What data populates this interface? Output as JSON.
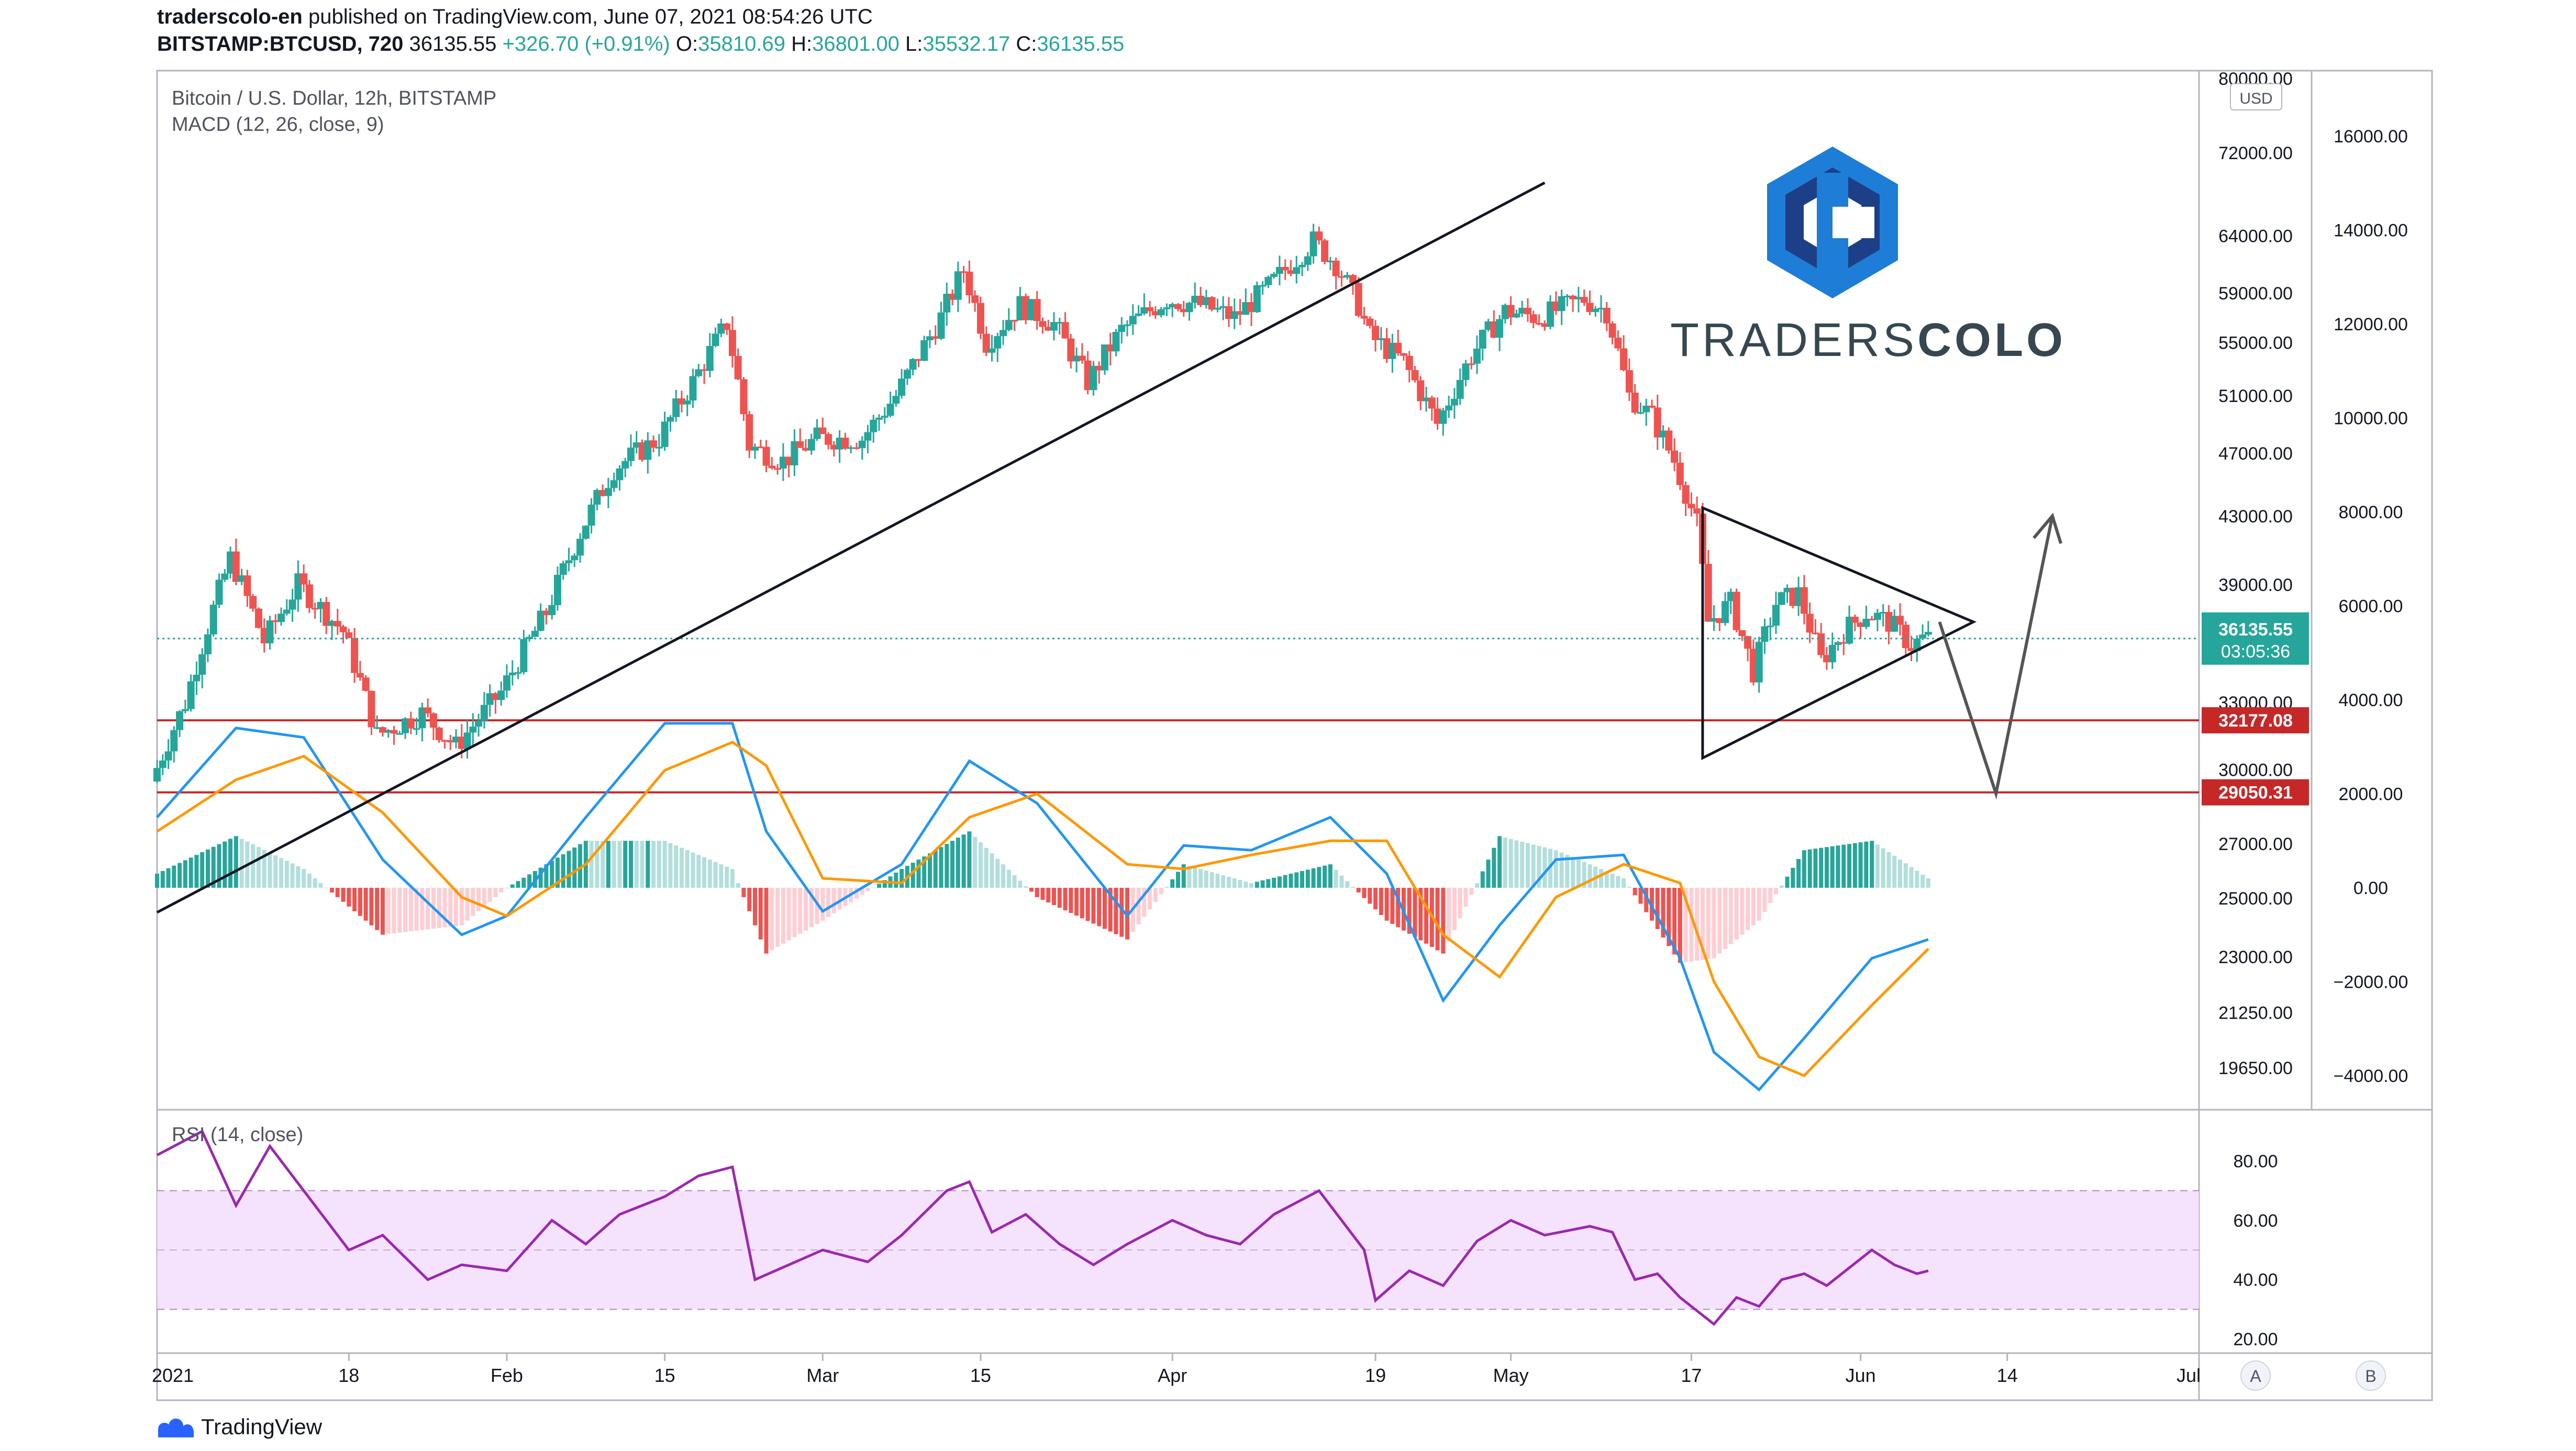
{
  "header": {
    "author": "traderscolo-en",
    "published_text": "published on TradingView.com, June 07, 2021 08:54:26 UTC",
    "symbol": "BITSTAMP:BTCUSD, 720",
    "last": "36135.55",
    "change": "+326.70 (+0.91%)",
    "o_label": "O:",
    "o": "35810.69",
    "h_label": "H:",
    "h": "36801.00",
    "l_label": "L:",
    "l": "35532.17",
    "c_label": "C:",
    "c": "36135.55"
  },
  "legend": {
    "title": "Bitcoin / U.S. Dollar, 12h, BITSTAMP",
    "macd": "MACD (12, 26, close, 9)",
    "rsi": "RSI (14, close)"
  },
  "brand": {
    "logo": "TRADERSCOLO",
    "logo_part1": "TRADERS",
    "logo_part2": "COLO"
  },
  "footer": {
    "brand": "TradingView"
  },
  "colors": {
    "up": "#26a69a",
    "down": "#ef5350",
    "macd": "#2196f3",
    "signal": "#ff9800",
    "rsi": "#9c27b0",
    "rsi_band": "#f2dcfc",
    "hline": "#c62828",
    "trendline": "#000000",
    "logo_blue": "#1e7dd6",
    "logo_dark": "#1d3f87",
    "logo_text": "#37474f"
  },
  "chart_data": {
    "type": "candlestick",
    "interval": "12h",
    "price_axis": {
      "scale": "log",
      "currency": "USD",
      "ticks": [
        "80000.00",
        "72000.00",
        "64000.00",
        "59000.00",
        "55000.00",
        "51000.00",
        "47000.00",
        "43000.00",
        "39000.00",
        "33000.00",
        "30000.00",
        "27000.00",
        "25000.00",
        "23000.00",
        "21250.00",
        "19650.00"
      ],
      "tick_values": [
        80000,
        72000,
        64000,
        59000,
        55000,
        51000,
        47000,
        43000,
        39000,
        33000,
        30000,
        27000,
        25000,
        23000,
        21250,
        19650
      ]
    },
    "macd_axis": {
      "ticks": [
        "16000.00",
        "14000.00",
        "12000.00",
        "10000.00",
        "8000.00",
        "6000.00",
        "4000.00",
        "2000.00",
        "0.00",
        "−2000.00",
        "−4000.00"
      ],
      "tick_values": [
        16000,
        14000,
        12000,
        10000,
        8000,
        6000,
        4000,
        2000,
        0,
        -2000,
        -4000
      ]
    },
    "rsi_axis": {
      "ticks": [
        "80.00",
        "60.00",
        "40.00",
        "20.00"
      ],
      "tick_values": [
        80,
        60,
        40,
        20
      ],
      "band": [
        30,
        70
      ]
    },
    "x_ticks": [
      "2021",
      "18",
      "Feb",
      "15",
      "Mar",
      "15",
      "Apr",
      "19",
      "May",
      "17",
      "Jun",
      "14",
      "Jul"
    ],
    "x_tick_dates": [
      "2021-01-01",
      "2021-01-18",
      "2021-02-01",
      "2021-02-15",
      "2021-03-01",
      "2021-03-15",
      "2021-04-01",
      "2021-04-19",
      "2021-05-01",
      "2021-05-17",
      "2021-06-01",
      "2021-06-14",
      "2021-07-01"
    ],
    "x_range": [
      "2021-01-01",
      "2021-07-01"
    ],
    "scale_buttons": [
      "A",
      "B"
    ],
    "last_price": {
      "value": "36135.55",
      "countdown": "03:05:36"
    },
    "horizontal_levels": [
      {
        "value": 32177.08,
        "label": "32177.08"
      },
      {
        "value": 29050.31,
        "label": "29050.31"
      }
    ],
    "path_points": [
      [
        "2021-01-01",
        29500
      ],
      [
        "2021-01-04",
        33000
      ],
      [
        "2021-01-08",
        40500
      ],
      [
        "2021-01-11",
        36000
      ],
      [
        "2021-01-14",
        39000
      ],
      [
        "2021-01-18",
        36500
      ],
      [
        "2021-01-21",
        31500
      ],
      [
        "2021-01-25",
        32500
      ],
      [
        "2021-01-28",
        31000
      ],
      [
        "2021-02-01",
        33500
      ],
      [
        "2021-02-05",
        37500
      ],
      [
        "2021-02-08",
        42000
      ],
      [
        "2021-02-11",
        46000
      ],
      [
        "2021-02-15",
        48000
      ],
      [
        "2021-02-18",
        52000
      ],
      [
        "2021-02-21",
        56500
      ],
      [
        "2021-02-23",
        47500
      ],
      [
        "2021-02-26",
        46500
      ],
      [
        "2021-03-01",
        48000
      ],
      [
        "2021-03-05",
        48000
      ],
      [
        "2021-03-08",
        51000
      ],
      [
        "2021-03-12",
        57000
      ],
      [
        "2021-03-14",
        61000
      ],
      [
        "2021-03-16",
        55000
      ],
      [
        "2021-03-19",
        58000
      ],
      [
        "2021-03-22",
        56500
      ],
      [
        "2021-03-25",
        52000
      ],
      [
        "2021-03-28",
        56000
      ],
      [
        "2021-04-01",
        58500
      ],
      [
        "2021-04-04",
        58000
      ],
      [
        "2021-04-07",
        57000
      ],
      [
        "2021-04-10",
        59500
      ],
      [
        "2021-04-14",
        63500
      ],
      [
        "2021-04-16",
        61500
      ],
      [
        "2021-04-18",
        58000
      ],
      [
        "2021-04-19",
        55500
      ],
      [
        "2021-04-22",
        53500
      ],
      [
        "2021-04-25",
        49000
      ],
      [
        "2021-04-28",
        54000
      ],
      [
        "2021-05-01",
        57500
      ],
      [
        "2021-05-04",
        57000
      ],
      [
        "2021-05-08",
        58500
      ],
      [
        "2021-05-10",
        57500
      ],
      [
        "2021-05-12",
        51000
      ],
      [
        "2021-05-14",
        49500
      ],
      [
        "2021-05-16",
        46500
      ],
      [
        "2021-05-18",
        42500
      ],
      [
        "2021-05-19",
        37000
      ],
      [
        "2021-05-21",
        38000
      ],
      [
        "2021-05-23",
        34500
      ],
      [
        "2021-05-25",
        38000
      ],
      [
        "2021-05-27",
        38500
      ],
      [
        "2021-05-29",
        35000
      ],
      [
        "2021-05-31",
        36500
      ],
      [
        "2021-06-02",
        37500
      ],
      [
        "2021-06-04",
        37000
      ],
      [
        "2021-06-06",
        35800
      ],
      [
        "2021-06-07",
        36135
      ]
    ],
    "macd_points": [
      [
        "2021-01-01",
        1500
      ],
      [
        "2021-01-08",
        3400
      ],
      [
        "2021-01-14",
        3200
      ],
      [
        "2021-01-21",
        600
      ],
      [
        "2021-01-28",
        -1000
      ],
      [
        "2021-02-01",
        -600
      ],
      [
        "2021-02-08",
        1500
      ],
      [
        "2021-02-15",
        3500
      ],
      [
        "2021-02-21",
        3500
      ],
      [
        "2021-02-24",
        1200
      ],
      [
        "2021-03-01",
        -500
      ],
      [
        "2021-03-08",
        500
      ],
      [
        "2021-03-14",
        2700
      ],
      [
        "2021-03-20",
        1800
      ],
      [
        "2021-03-28",
        -600
      ],
      [
        "2021-04-02",
        900
      ],
      [
        "2021-04-08",
        800
      ],
      [
        "2021-04-15",
        1500
      ],
      [
        "2021-04-20",
        300
      ],
      [
        "2021-04-25",
        -2400
      ],
      [
        "2021-04-30",
        -800
      ],
      [
        "2021-05-05",
        600
      ],
      [
        "2021-05-11",
        700
      ],
      [
        "2021-05-16",
        -1500
      ],
      [
        "2021-05-19",
        -3500
      ],
      [
        "2021-05-23",
        -4300
      ],
      [
        "2021-05-27",
        -3200
      ],
      [
        "2021-06-02",
        -1500
      ],
      [
        "2021-06-07",
        -1100
      ]
    ],
    "signal_points": [
      [
        "2021-01-01",
        1200
      ],
      [
        "2021-01-08",
        2300
      ],
      [
        "2021-01-14",
        2800
      ],
      [
        "2021-01-21",
        1600
      ],
      [
        "2021-01-28",
        -200
      ],
      [
        "2021-02-01",
        -600
      ],
      [
        "2021-02-08",
        500
      ],
      [
        "2021-02-15",
        2500
      ],
      [
        "2021-02-21",
        3100
      ],
      [
        "2021-02-24",
        2600
      ],
      [
        "2021-03-01",
        200
      ],
      [
        "2021-03-08",
        100
      ],
      [
        "2021-03-14",
        1500
      ],
      [
        "2021-03-20",
        2000
      ],
      [
        "2021-03-28",
        500
      ],
      [
        "2021-04-02",
        400
      ],
      [
        "2021-04-08",
        700
      ],
      [
        "2021-04-15",
        1000
      ],
      [
        "2021-04-20",
        1000
      ],
      [
        "2021-04-25",
        -1000
      ],
      [
        "2021-04-30",
        -1900
      ],
      [
        "2021-05-05",
        -200
      ],
      [
        "2021-05-11",
        500
      ],
      [
        "2021-05-16",
        100
      ],
      [
        "2021-05-19",
        -2000
      ],
      [
        "2021-05-23",
        -3600
      ],
      [
        "2021-05-27",
        -4000
      ],
      [
        "2021-06-02",
        -2500
      ],
      [
        "2021-06-07",
        -1300
      ]
    ],
    "rsi_points": [
      [
        "2021-01-01",
        82
      ],
      [
        "2021-01-05",
        90
      ],
      [
        "2021-01-08",
        65
      ],
      [
        "2021-01-11",
        85
      ],
      [
        "2021-01-14",
        70
      ],
      [
        "2021-01-18",
        50
      ],
      [
        "2021-01-21",
        55
      ],
      [
        "2021-01-25",
        40
      ],
      [
        "2021-01-28",
        45
      ],
      [
        "2021-02-01",
        43
      ],
      [
        "2021-02-05",
        60
      ],
      [
        "2021-02-08",
        52
      ],
      [
        "2021-02-11",
        62
      ],
      [
        "2021-02-15",
        68
      ],
      [
        "2021-02-18",
        75
      ],
      [
        "2021-02-21",
        78
      ],
      [
        "2021-02-23",
        40
      ],
      [
        "2021-02-26",
        45
      ],
      [
        "2021-03-01",
        50
      ],
      [
        "2021-03-05",
        46
      ],
      [
        "2021-03-08",
        55
      ],
      [
        "2021-03-12",
        70
      ],
      [
        "2021-03-14",
        73
      ],
      [
        "2021-03-16",
        56
      ],
      [
        "2021-03-19",
        62
      ],
      [
        "2021-03-22",
        52
      ],
      [
        "2021-03-25",
        45
      ],
      [
        "2021-03-28",
        52
      ],
      [
        "2021-04-01",
        60
      ],
      [
        "2021-04-04",
        55
      ],
      [
        "2021-04-07",
        52
      ],
      [
        "2021-04-10",
        62
      ],
      [
        "2021-04-14",
        70
      ],
      [
        "2021-04-16",
        60
      ],
      [
        "2021-04-18",
        50
      ],
      [
        "2021-04-19",
        33
      ],
      [
        "2021-04-22",
        43
      ],
      [
        "2021-04-25",
        38
      ],
      [
        "2021-04-28",
        53
      ],
      [
        "2021-05-01",
        60
      ],
      [
        "2021-05-04",
        55
      ],
      [
        "2021-05-08",
        58
      ],
      [
        "2021-05-10",
        56
      ],
      [
        "2021-05-12",
        40
      ],
      [
        "2021-05-14",
        42
      ],
      [
        "2021-05-16",
        34
      ],
      [
        "2021-05-19",
        25
      ],
      [
        "2021-05-21",
        34
      ],
      [
        "2021-05-23",
        31
      ],
      [
        "2021-05-25",
        40
      ],
      [
        "2021-05-27",
        42
      ],
      [
        "2021-05-29",
        38
      ],
      [
        "2021-05-31",
        44
      ],
      [
        "2021-06-02",
        50
      ],
      [
        "2021-06-04",
        45
      ],
      [
        "2021-06-06",
        42
      ],
      [
        "2021-06-07",
        43
      ]
    ],
    "drawings": {
      "uptrend_line": [
        [
          "2021-01-01",
          24500
        ],
        [
          "2021-05-04",
          69000
        ]
      ],
      "triangle": [
        [
          "2021-05-18",
          43500
        ],
        [
          "2021-06-11",
          37000
        ],
        [
          "2021-05-18",
          30500
        ]
      ],
      "projection": [
        [
          "2021-06-08",
          37000
        ],
        [
          "2021-06-13",
          29000
        ],
        [
          "2021-06-18",
          43000
        ]
      ]
    }
  }
}
